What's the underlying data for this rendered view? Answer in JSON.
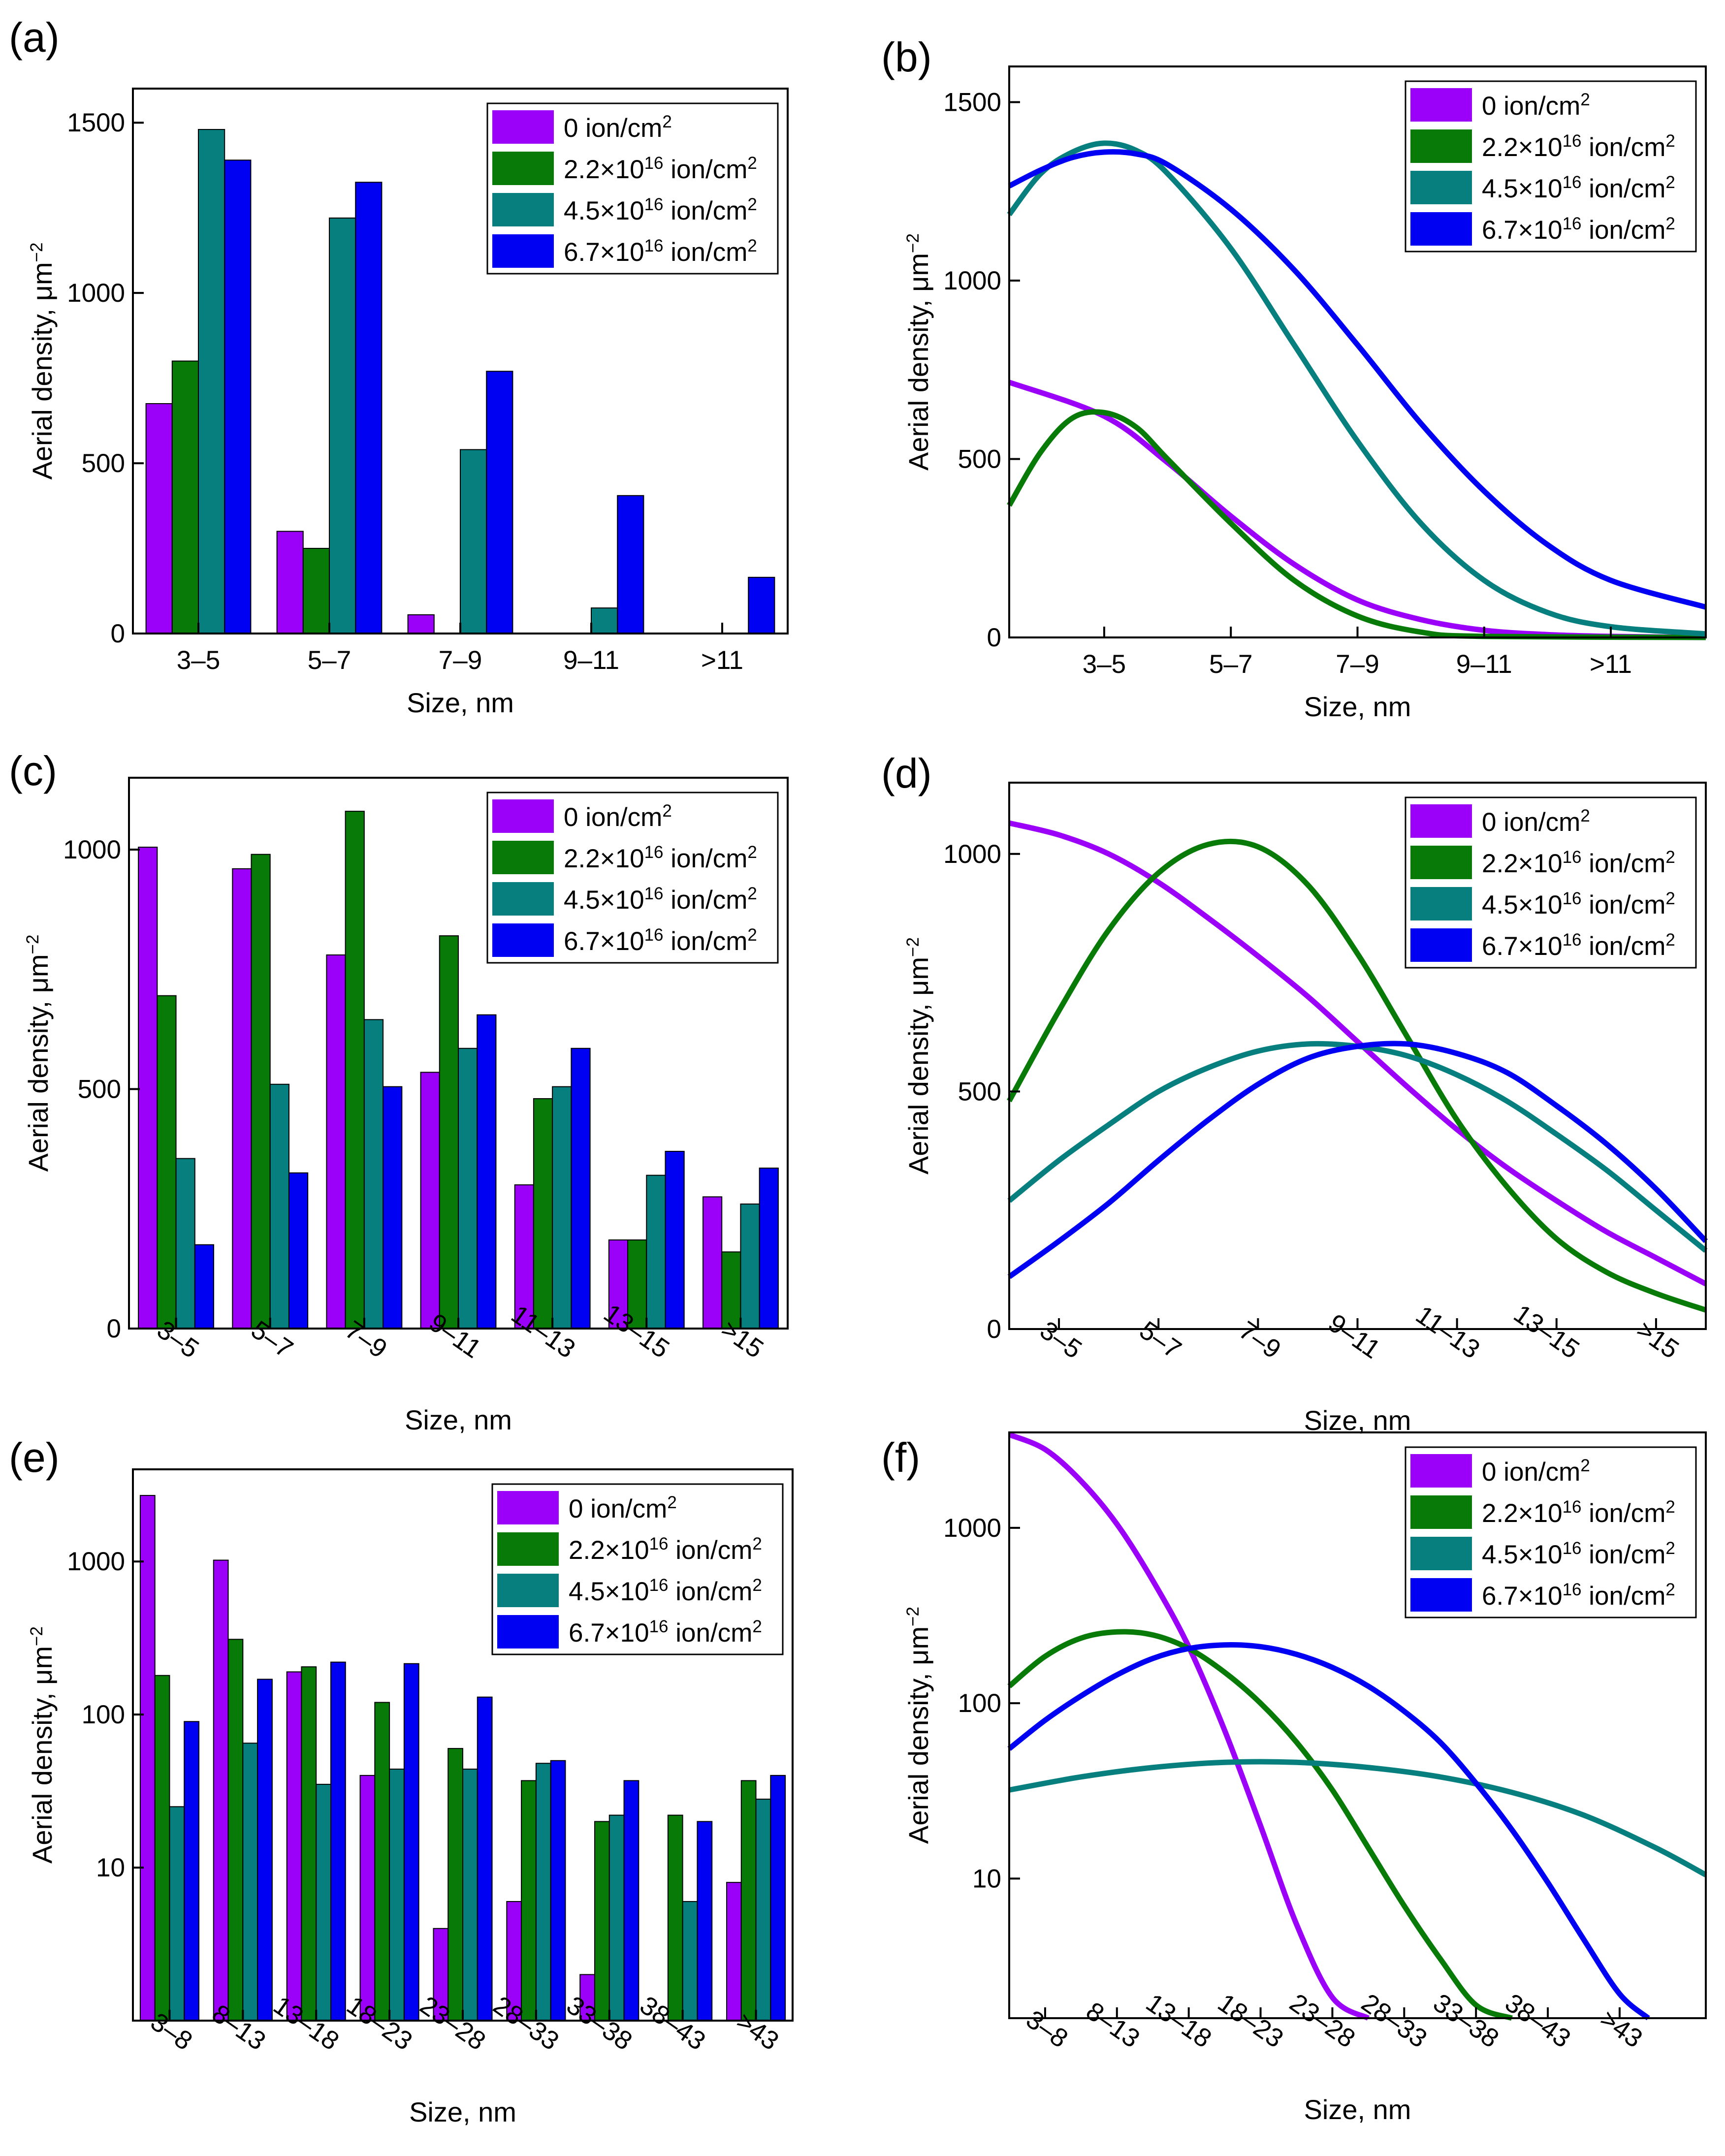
{
  "colors": {
    "violet": "#9b00f8",
    "green": "#077a07",
    "teal": "#087f7f",
    "blue": "#0000f2"
  },
  "chart_data": [
    {
      "panel_label": "(a)",
      "type": "bar",
      "scale": "linear",
      "ylim": [
        0,
        1600
      ],
      "yticks": [
        0,
        500,
        1000,
        1500
      ],
      "categories": [
        "3–5",
        "5–7",
        "7–9",
        "9–11",
        ">11"
      ],
      "xlabel": "Size, nm",
      "ylabel": "Aerial density, μm⁻²",
      "series": [
        {
          "name": "0 ion/cm²",
          "color": "violet",
          "values": [
            675,
            300,
            55,
            null,
            null
          ]
        },
        {
          "name": "2.2×10¹⁶ ion/cm²",
          "color": "green",
          "values": [
            800,
            250,
            null,
            null,
            null
          ]
        },
        {
          "name": "4.5×10¹⁶ ion/cm²",
          "color": "teal",
          "values": [
            1480,
            1220,
            540,
            75,
            null
          ]
        },
        {
          "name": "6.7×10¹⁶ ion/cm²",
          "color": "blue",
          "values": [
            1390,
            1325,
            770,
            405,
            165
          ]
        }
      ],
      "legend_position": "top-right"
    },
    {
      "panel_label": "(b)",
      "type": "line",
      "scale": "linear",
      "ylim": [
        0,
        1600
      ],
      "yticks": [
        0,
        500,
        1000,
        1500
      ],
      "categories": [
        "3–5",
        "5–7",
        "7–9",
        "9–11",
        ">11"
      ],
      "x_range": [
        -0.75,
        4.75
      ],
      "xlabel": "Size, nm",
      "ylabel": "Aerial density, μm⁻²",
      "series": [
        {
          "name": "0 ion/cm²",
          "color": "violet",
          "x": [
            -0.75,
            0,
            0.5,
            1,
            1.5,
            2,
            2.5,
            3,
            3.5,
            4,
            4.75
          ],
          "y": [
            715,
            620,
            490,
            340,
            205,
            105,
            50,
            20,
            8,
            3,
            0
          ]
        },
        {
          "name": "2.2×10¹⁶ ion/cm²",
          "color": "green",
          "x": [
            -0.75,
            -0.5,
            -0.25,
            0,
            0.25,
            0.5,
            1,
            1.5,
            2,
            2.5,
            3,
            4.75
          ],
          "y": [
            370,
            520,
            615,
            630,
            590,
            500,
            320,
            160,
            60,
            15,
            3,
            0
          ]
        },
        {
          "name": "4.5×10¹⁶ ion/cm²",
          "color": "teal",
          "x": [
            -0.75,
            -0.5,
            -0.25,
            0,
            0.25,
            0.5,
            1,
            1.5,
            2,
            2.5,
            3,
            3.5,
            4,
            4.75
          ],
          "y": [
            1185,
            1300,
            1360,
            1385,
            1365,
            1300,
            1090,
            820,
            550,
            320,
            160,
            70,
            30,
            10
          ]
        },
        {
          "name": "6.7×10¹⁶ ion/cm²",
          "color": "blue",
          "x": [
            -0.75,
            -0.5,
            -0.25,
            0,
            0.25,
            0.5,
            1,
            1.5,
            2,
            2.5,
            3,
            3.5,
            4,
            4.75
          ],
          "y": [
            1265,
            1310,
            1345,
            1360,
            1355,
            1325,
            1200,
            1030,
            820,
            600,
            410,
            260,
            160,
            85
          ]
        }
      ],
      "legend_position": "top-right"
    },
    {
      "panel_label": "(c)",
      "type": "bar",
      "scale": "linear",
      "ylim": [
        0,
        1150
      ],
      "yticks": [
        0,
        500,
        1000
      ],
      "categories": [
        "3–5",
        "5–7",
        "7–9",
        "9–11",
        "11–13",
        "13–15",
        ">15"
      ],
      "xlabel": "Size, nm",
      "ylabel": "Aerial density, μm⁻²",
      "series": [
        {
          "name": "0 ion/cm²",
          "color": "violet",
          "values": [
            1005,
            960,
            780,
            535,
            300,
            185,
            275
          ]
        },
        {
          "name": "2.2×10¹⁶ ion/cm²",
          "color": "green",
          "values": [
            695,
            990,
            1080,
            820,
            480,
            185,
            160
          ]
        },
        {
          "name": "4.5×10¹⁶ ion/cm²",
          "color": "teal",
          "values": [
            355,
            510,
            645,
            585,
            505,
            320,
            260
          ]
        },
        {
          "name": "6.7×10¹⁶ ion/cm²",
          "color": "blue",
          "values": [
            175,
            325,
            505,
            655,
            585,
            370,
            335
          ]
        }
      ],
      "legend_position": "top-right"
    },
    {
      "panel_label": "(d)",
      "type": "line",
      "scale": "linear",
      "ylim": [
        0,
        1150
      ],
      "yticks": [
        0,
        500,
        1000
      ],
      "categories": [
        "3–5",
        "5–7",
        "7–9",
        "9–11",
        "11–13",
        "13–15",
        ">15"
      ],
      "x_range": [
        -0.5,
        6.5
      ],
      "xlabel": "Size, nm",
      "ylabel": "Aerial density, μm⁻²",
      "series": [
        {
          "name": "0 ion/cm²",
          "color": "violet",
          "x": [
            -0.5,
            0,
            0.5,
            1,
            1.5,
            2,
            2.5,
            3,
            3.5,
            4,
            4.5,
            5,
            5.5,
            6,
            6.5
          ],
          "y": [
            1065,
            1040,
            1000,
            940,
            865,
            785,
            700,
            605,
            510,
            420,
            340,
            270,
            205,
            150,
            95
          ]
        },
        {
          "name": "2.2×10¹⁶ ion/cm²",
          "color": "green",
          "x": [
            -0.5,
            0,
            0.5,
            1,
            1.5,
            2,
            2.5,
            3,
            3.5,
            4,
            4.5,
            5,
            5.5,
            6,
            6.5
          ],
          "y": [
            480,
            670,
            840,
            960,
            1020,
            1015,
            935,
            790,
            615,
            440,
            300,
            190,
            120,
            75,
            40
          ]
        },
        {
          "name": "4.5×10¹⁶ ion/cm²",
          "color": "teal",
          "x": [
            -0.5,
            0,
            0.5,
            1,
            1.5,
            2,
            2.5,
            3,
            3.5,
            4,
            4.5,
            5,
            5.5,
            6,
            6.5
          ],
          "y": [
            270,
            355,
            430,
            500,
            550,
            585,
            600,
            595,
            575,
            535,
            480,
            410,
            335,
            250,
            165
          ]
        },
        {
          "name": "6.7×10¹⁶ ion/cm²",
          "color": "blue",
          "x": [
            -0.5,
            0,
            0.5,
            1,
            1.5,
            2,
            2.5,
            3,
            3.5,
            4,
            4.5,
            5,
            5.5,
            6,
            6.5
          ],
          "y": [
            110,
            185,
            265,
            355,
            440,
            515,
            570,
            595,
            600,
            580,
            540,
            470,
            390,
            295,
            185
          ]
        }
      ],
      "legend_position": "top-right"
    },
    {
      "panel_label": "(e)",
      "type": "bar",
      "scale": "log",
      "ylim": [
        1,
        4000
      ],
      "yticks": [
        10,
        100,
        1000
      ],
      "categories": [
        "3–8",
        "8–13",
        "13–18",
        "18–23",
        "23–28",
        "28–33",
        "33–38",
        "38–43",
        ">43"
      ],
      "xlabel": "Size, nm",
      "ylabel": "Aerial density, μm⁻²",
      "series": [
        {
          "name": "0 ion/cm²",
          "color": "violet",
          "values": [
            2700,
            1020,
            190,
            40,
            4,
            6,
            2,
            null,
            8
          ]
        },
        {
          "name": "2.2×10¹⁶ ion/cm²",
          "color": "green",
          "values": [
            180,
            310,
            205,
            120,
            60,
            37,
            20,
            22,
            37
          ]
        },
        {
          "name": "4.5×10¹⁶ ion/cm²",
          "color": "teal",
          "values": [
            25,
            65,
            35,
            44,
            44,
            48,
            22,
            6,
            28
          ]
        },
        {
          "name": "6.7×10¹⁶ ion/cm²",
          "color": "blue",
          "values": [
            90,
            170,
            220,
            215,
            130,
            50,
            37,
            20,
            40
          ]
        }
      ],
      "legend_position": "top-right"
    },
    {
      "panel_label": "(f)",
      "type": "line",
      "scale": "log",
      "ylim": [
        1.6,
        3500
      ],
      "yticks": [
        10,
        100,
        1000
      ],
      "categories": [
        "3–8",
        "8–13",
        "13–18",
        "18–23",
        "23–28",
        "28–33",
        "33–38",
        "38–43",
        ">43"
      ],
      "x_range": [
        -0.5,
        9.2
      ],
      "xlabel": "Size, nm",
      "ylabel": "Aerial density, μm⁻²",
      "series": [
        {
          "name": "0 ion/cm²",
          "color": "violet",
          "x": [
            -0.5,
            0,
            0.5,
            1,
            1.5,
            2,
            2.5,
            3,
            3.5,
            4,
            4.5
          ],
          "y": [
            3400,
            2800,
            1850,
            1050,
            500,
            210,
            70,
            20,
            5.5,
            2.1,
            1.6
          ]
        },
        {
          "name": "2.2×10¹⁶ ion/cm²",
          "color": "green",
          "x": [
            -0.5,
            0,
            0.5,
            1,
            1.5,
            2,
            2.5,
            3,
            3.5,
            4,
            4.5,
            5,
            5.5,
            6,
            6.5
          ],
          "y": [
            125,
            185,
            235,
            255,
            245,
            205,
            150,
            100,
            60,
            32,
            15,
            7,
            3.5,
            1.9,
            1.6
          ]
        },
        {
          "name": "4.5×10¹⁶ ion/cm²",
          "color": "teal",
          "x": [
            -0.5,
            0.5,
            1.5,
            2.5,
            3.5,
            4.5,
            5.5,
            6.5,
            7.5,
            8.5,
            9.2
          ],
          "y": [
            32,
            38,
            43,
            46,
            46,
            43,
            38,
            31,
            23,
            15,
            10.5
          ]
        },
        {
          "name": "6.7×10¹⁶ ion/cm²",
          "color": "blue",
          "x": [
            -0.5,
            0,
            0.5,
            1,
            1.5,
            2,
            2.5,
            3,
            3.5,
            4,
            4.5,
            5,
            5.5,
            6,
            6.5,
            7,
            7.5,
            8,
            8.4
          ],
          "y": [
            55,
            80,
            110,
            145,
            180,
            205,
            215,
            210,
            190,
            160,
            125,
            90,
            60,
            35,
            19,
            9.5,
            4.5,
            2.2,
            1.6
          ]
        }
      ],
      "legend_position": "top-right"
    }
  ]
}
